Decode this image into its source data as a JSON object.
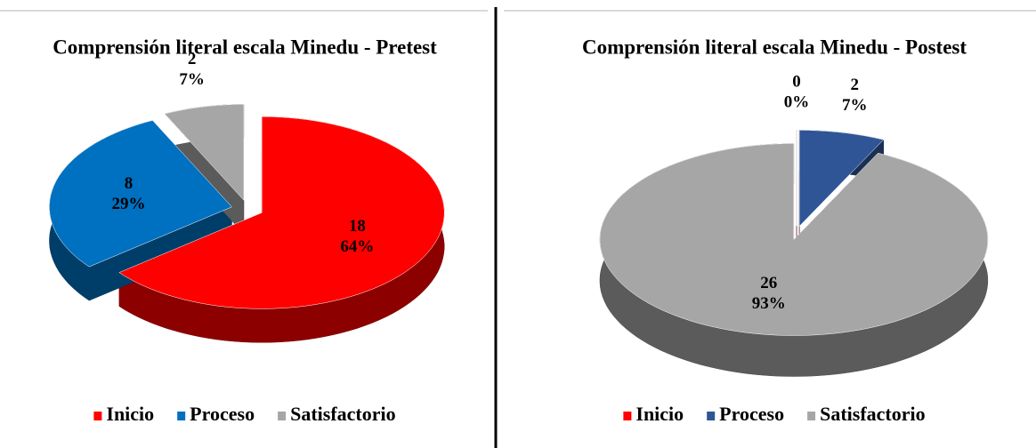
{
  "chart_data": [
    {
      "type": "pie",
      "title": "Comprensión literal escala Minedu - Pretest",
      "categories": [
        "Inicio",
        "Proceso",
        "Satisfactorio"
      ],
      "values": [
        18,
        8,
        2
      ],
      "percents": [
        64,
        29,
        7
      ],
      "percent_labels": [
        "64%",
        "29%",
        "7%"
      ],
      "colors": [
        "#ff0000",
        "#0070c0",
        "#a6a6a6"
      ]
    },
    {
      "type": "pie",
      "title": "Comprensión literal escala Minedu - Postest",
      "categories": [
        "Inicio",
        "Proceso",
        "Satisfactorio"
      ],
      "values": [
        0,
        2,
        26
      ],
      "percents": [
        0,
        7,
        93
      ],
      "percent_labels": [
        "0%",
        "7%",
        "93%"
      ],
      "colors": [
        "#ff0000",
        "#2f5597",
        "#a6a6a6"
      ]
    }
  ]
}
